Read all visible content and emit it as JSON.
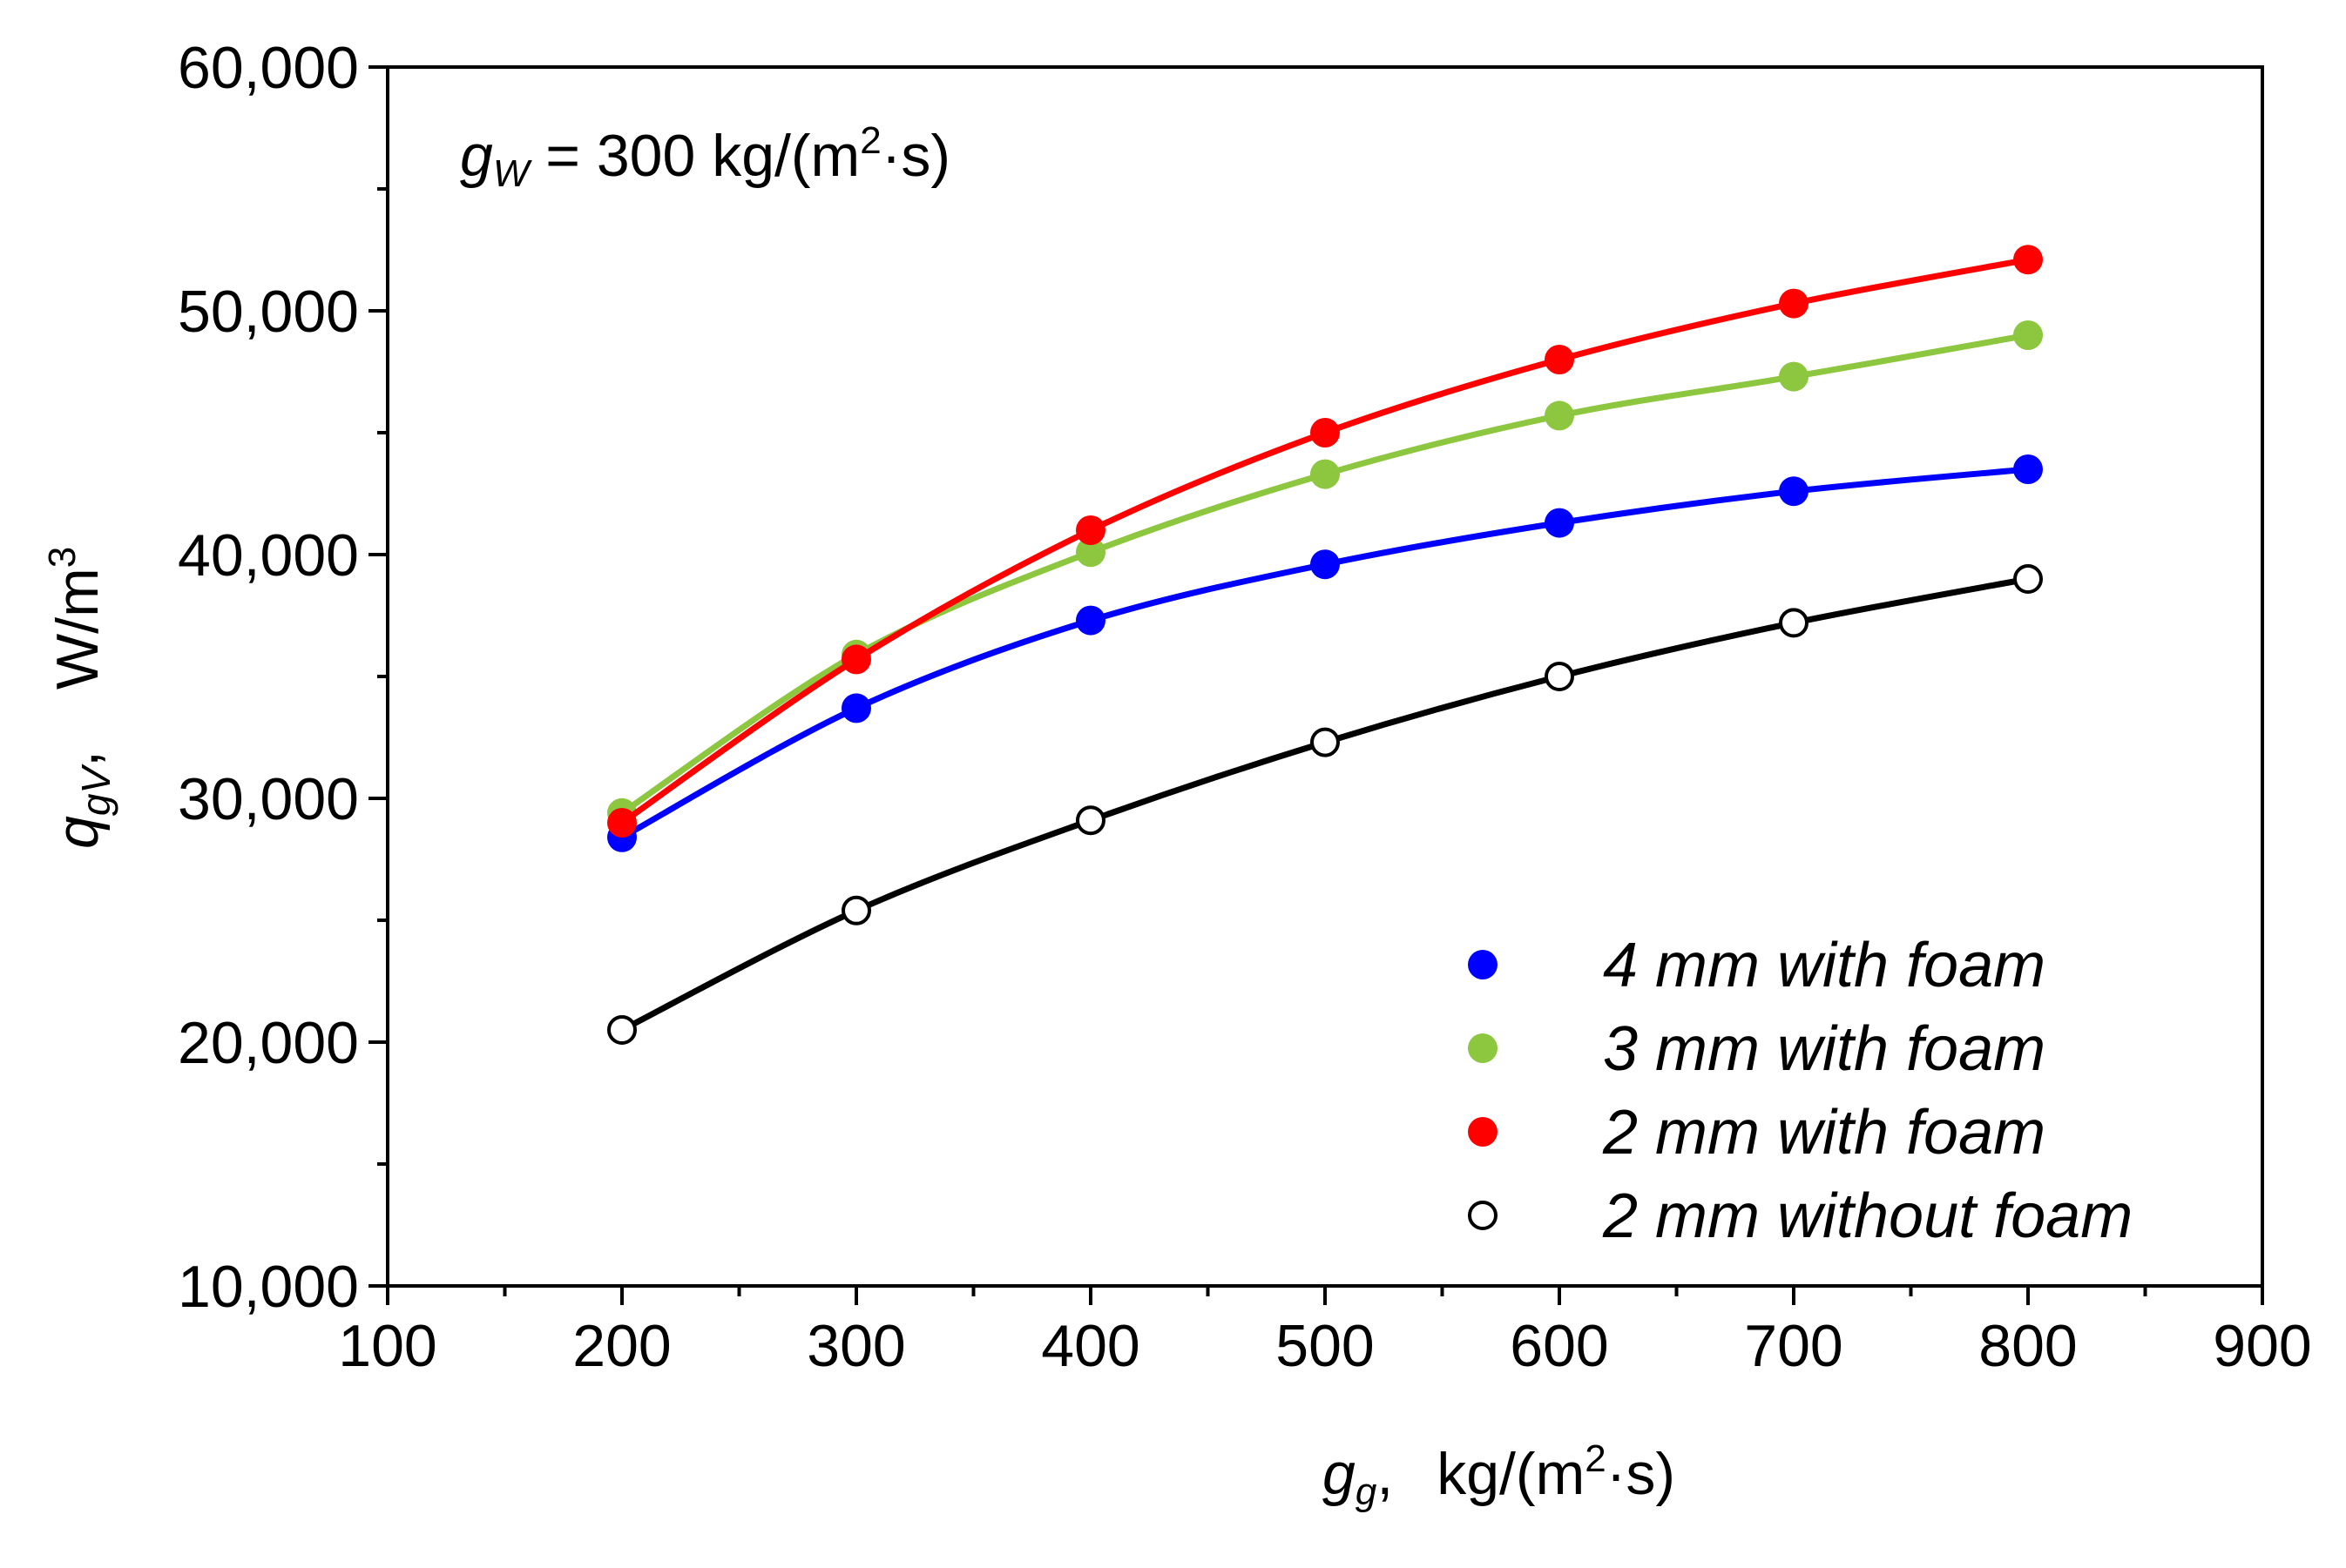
{
  "chart_data": {
    "type": "line",
    "x": [
      200,
      300,
      400,
      500,
      600,
      700,
      800
    ],
    "xlim": [
      100,
      900
    ],
    "ylim": [
      10000,
      60000
    ],
    "xticks": [
      100,
      200,
      300,
      400,
      500,
      600,
      700,
      800,
      900
    ],
    "yticks": [
      10000,
      20000,
      30000,
      40000,
      50000,
      60000
    ],
    "xtick_labels": [
      "100",
      "200",
      "300",
      "400",
      "500",
      "600",
      "700",
      "800",
      "900"
    ],
    "ytick_labels": [
      "10,000",
      "20,000",
      "30,000",
      "40,000",
      "50,000",
      "60,000"
    ],
    "xlabel": {
      "symbol": "g",
      "subscript": "g",
      "sep": ",",
      "unit": "kg/(m",
      "unit_sup": "2",
      "unit_end": "·s)"
    },
    "ylabel": {
      "symbol": "q",
      "subscript": "gV",
      "sep": ",",
      "unit": "W/m",
      "unit_sup": "3"
    },
    "annotation": {
      "symbol": "g",
      "subscript": "W",
      "text": " = 300 kg/(m",
      "sup": "2",
      "end": "·s)"
    },
    "legend_position": "bottom-right",
    "grid": false,
    "series": [
      {
        "name": "4 mm with foam",
        "color": "#0000ff",
        "marker": "filled",
        "values": [
          28400,
          33700,
          37300,
          39600,
          41300,
          42600,
          43500
        ]
      },
      {
        "name": "3 mm with foam",
        "color": "#8dc63f",
        "marker": "filled",
        "values": [
          29400,
          35900,
          40100,
          43300,
          45700,
          47300,
          49000
        ]
      },
      {
        "name": "2 mm with foam",
        "color": "#ff0000",
        "marker": "filled",
        "values": [
          29000,
          35700,
          41000,
          45000,
          48000,
          50300,
          52100
        ]
      },
      {
        "name": "2 mm without foam",
        "color": "#000000",
        "marker": "open",
        "values": [
          20500,
          25400,
          29100,
          32300,
          35000,
          37200,
          39000
        ]
      }
    ]
  }
}
